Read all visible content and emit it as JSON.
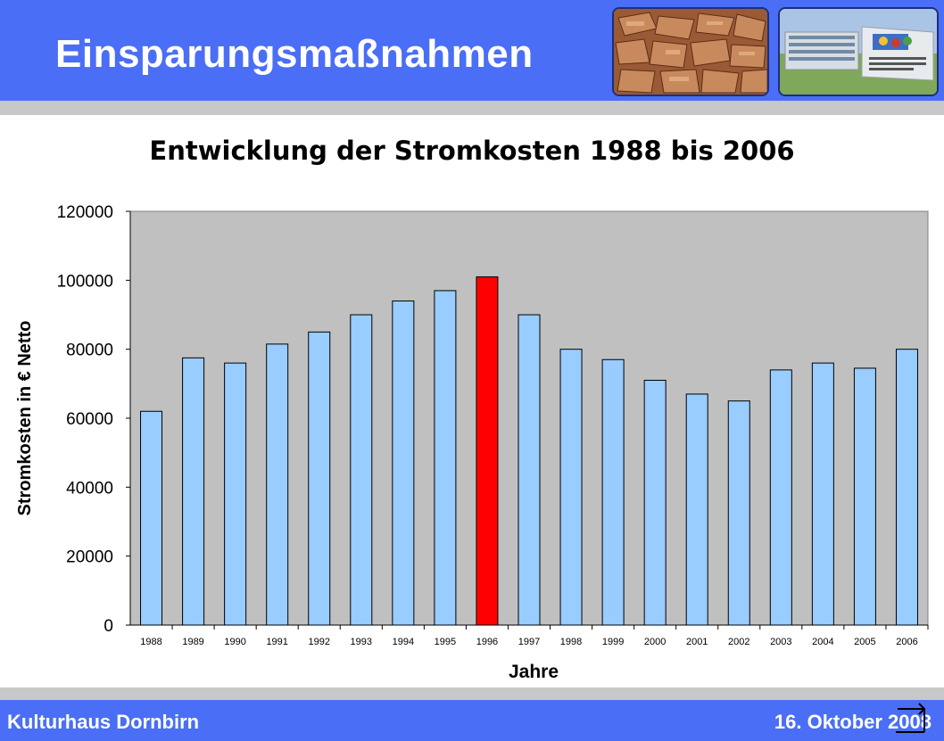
{
  "slide": {
    "title": "Einsparungsmaßnahmen",
    "footer_left": "Kulturhaus Dornbirn",
    "footer_right": "16. Oktober 2008"
  },
  "images": {
    "left": "wood-chips-photo",
    "right": "building-photo"
  },
  "colors": {
    "header": "#4a6ef5",
    "bar": "#99ccff",
    "bar_highlight": "#ff0000",
    "plot_bg": "#c0c0c0"
  },
  "chart_data": {
    "type": "bar",
    "title": "Entwicklung der Stromkosten 1988 bis 2006",
    "xlabel": "Jahre",
    "ylabel": "Stromkosten in € Netto",
    "ylim": [
      0,
      120000
    ],
    "yticks": [
      "0",
      "20000",
      "40000",
      "60000",
      "80000",
      "100000",
      "120000"
    ],
    "categories": [
      "1988",
      "1989",
      "1990",
      "1991",
      "1992",
      "1993",
      "1994",
      "1995",
      "1996",
      "1997",
      "1998",
      "1999",
      "2000",
      "2001",
      "2002",
      "2003",
      "2004",
      "2005",
      "2006"
    ],
    "values": [
      62000,
      77500,
      76000,
      81500,
      85000,
      90000,
      94000,
      97000,
      101000,
      90000,
      80000,
      77000,
      71000,
      67000,
      65000,
      74000,
      76000,
      74500,
      80000
    ],
    "highlight_category": "1996",
    "grid": false,
    "legend": "none"
  }
}
